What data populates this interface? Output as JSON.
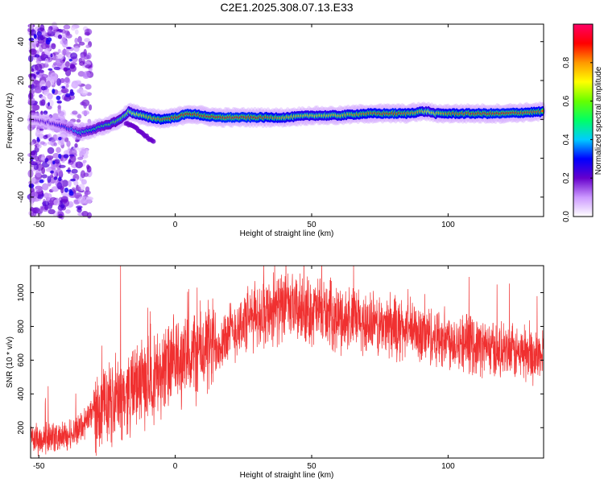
{
  "title": "C2E1.2025.308.07.13.E33",
  "chart_data": [
    {
      "type": "heatmap",
      "xlabel": "Height of straight line (km)",
      "ylabel": "Frequency (Hz)",
      "xlim": [
        -53,
        135
      ],
      "ylim": [
        -50,
        49
      ],
      "x_ticks": [
        -50,
        0,
        50,
        100
      ],
      "y_ticks": [
        -40,
        -20,
        0,
        20,
        40
      ],
      "grid": false,
      "colorbar": {
        "label": "Normalized spectral amplitude",
        "range": [
          0,
          1
        ],
        "ticks": [
          "0.0",
          "0.2",
          "0.4",
          "0.6",
          "0.8"
        ],
        "colors": [
          "#ffffff",
          "#cc99ff",
          "#6600cc",
          "#0000ff",
          "#00ccff",
          "#00ff66",
          "#66ff00",
          "#ffff00",
          "#ff9900",
          "#ff0000",
          "#ff0066"
        ]
      },
      "ridge": {
        "x": [
          -53,
          -45,
          -38,
          -35,
          -30,
          -25,
          -20,
          -17,
          -15,
          -12,
          -10,
          -5,
          0,
          5,
          10,
          15,
          20,
          30,
          40,
          50,
          60,
          70,
          80,
          85,
          90,
          93,
          95,
          100,
          110,
          120,
          135
        ],
        "frequency": [
          0,
          -2,
          -5,
          -7,
          -5,
          -3,
          0,
          4,
          3,
          2,
          1,
          0,
          1,
          3,
          2,
          1,
          1,
          1,
          1,
          2,
          2,
          3,
          3,
          3,
          4,
          4,
          3,
          3,
          3,
          3,
          4
        ],
        "amplitude": [
          0.2,
          0.25,
          0.35,
          0.45,
          0.5,
          0.55,
          0.6,
          0.65,
          0.7,
          0.75,
          0.8,
          0.85,
          0.9,
          0.9,
          0.88,
          0.9,
          0.92,
          0.9,
          0.8,
          0.75,
          0.78,
          0.85,
          0.9,
          0.85,
          0.8,
          0.7,
          0.75,
          0.85,
          0.88,
          0.9,
          0.85
        ]
      },
      "secondary_branch": {
        "x": [
          -18,
          -14,
          -11,
          -8
        ],
        "frequency": [
          -2,
          -5,
          -8,
          -12
        ]
      }
    },
    {
      "type": "line",
      "xlabel": "Height of straight line (km)",
      "ylabel": "SNR (10 * v/v)",
      "xlim": [
        -53,
        135
      ],
      "ylim": [
        20,
        1160
      ],
      "x_ticks": [
        -50,
        0,
        50,
        100
      ],
      "y_ticks": [
        200,
        400,
        600,
        800,
        1000
      ],
      "grid": false,
      "series": [
        {
          "color": "#f03030",
          "x": [
            -53,
            -45,
            -40,
            -35,
            -30,
            -25,
            -20,
            -15,
            -10,
            -5,
            0,
            5,
            10,
            15,
            20,
            25,
            30,
            35,
            40,
            45,
            50,
            55,
            60,
            65,
            70,
            75,
            80,
            85,
            90,
            95,
            100,
            105,
            110,
            115,
            120,
            125,
            130,
            135
          ],
          "y": [
            130,
            140,
            150,
            200,
            290,
            330,
            380,
            440,
            480,
            530,
            580,
            610,
            660,
            690,
            760,
            820,
            870,
            900,
            910,
            900,
            890,
            880,
            850,
            840,
            820,
            800,
            790,
            780,
            760,
            740,
            730,
            710,
            690,
            670,
            650,
            640,
            630,
            620
          ]
        }
      ],
      "spikes": [
        {
          "x": -20,
          "y": 1160
        },
        {
          "x": 8,
          "y": 1030
        },
        {
          "x": 36,
          "y": 1120
        }
      ]
    }
  ]
}
